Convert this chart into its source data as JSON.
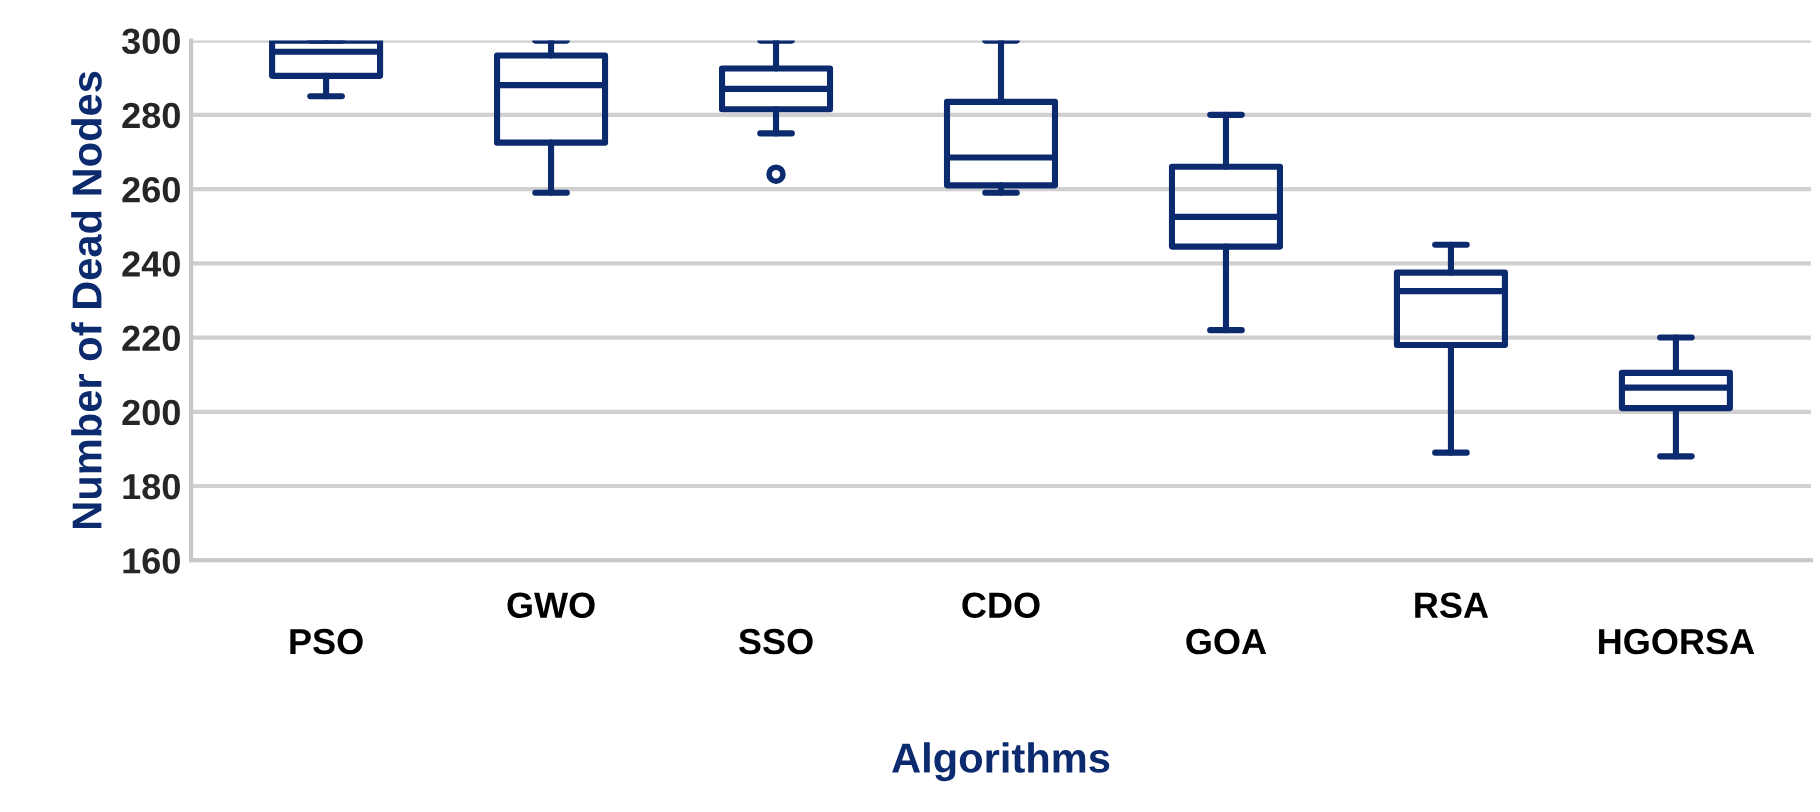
{
  "chart_data": {
    "type": "box",
    "xlabel": "Algorithms",
    "ylabel": "Number of Dead Nodes",
    "categories": [
      "PSO",
      "GWO",
      "SSO",
      "CDO",
      "GOA",
      "RSA",
      "HGORSA"
    ],
    "series": [
      {
        "color": "#0c2a6e",
        "boxes": [
          {
            "low": 285,
            "q1": 290.5,
            "median": 297,
            "q3": 300,
            "high": 300
          },
          {
            "low": 259,
            "q1": 272.5,
            "median": 288,
            "q3": 296,
            "high": 300
          },
          {
            "low": 275,
            "q1": 281.5,
            "median": 287,
            "q3": 292.5,
            "high": 300,
            "outliers": [
              264
            ]
          },
          {
            "low": 259,
            "q1": 261,
            "median": 268.5,
            "q3": 283.5,
            "high": 300
          },
          {
            "low": 222,
            "q1": 244.5,
            "median": 252.5,
            "q3": 266,
            "high": 280
          },
          {
            "low": 189,
            "q1": 218,
            "median": 232.5,
            "q3": 237.5,
            "high": 245
          },
          {
            "low": 188,
            "q1": 201,
            "median": 206.5,
            "q3": 210.5,
            "high": 220
          }
        ]
      }
    ],
    "ylim": [
      160,
      300
    ],
    "yticks": [
      160,
      180,
      200,
      220,
      240,
      260,
      280,
      300
    ],
    "grid": "y"
  }
}
